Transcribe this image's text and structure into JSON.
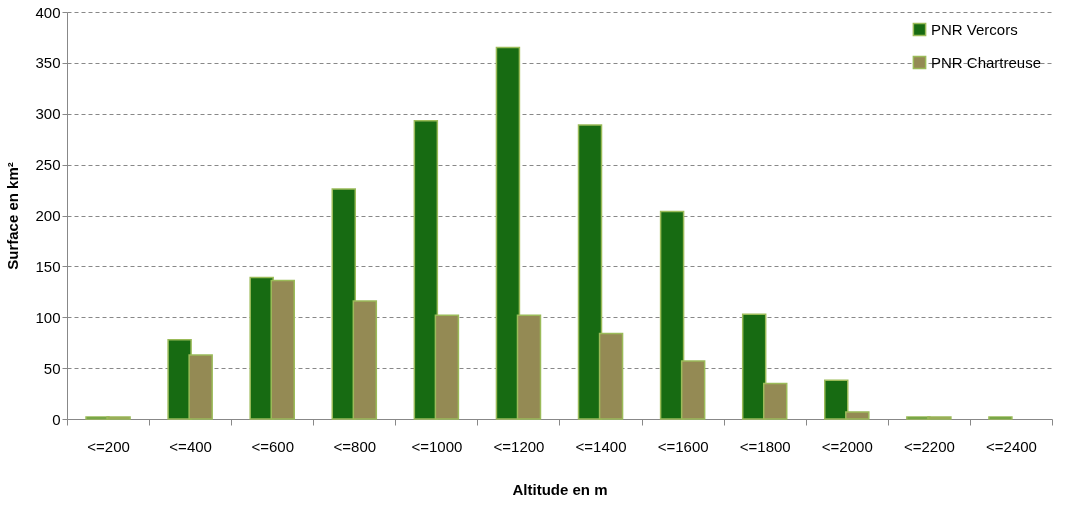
{
  "chart_data": {
    "type": "bar",
    "xlabel": "Altitude en m",
    "ylabel": "Surface en km²",
    "categories": [
      "<=200",
      "<=400",
      "<=600",
      "<=800",
      "<=1000",
      "<=1200",
      "<=1400",
      "<=1600",
      "<=1800",
      "<=2000",
      "<=2200",
      "<=2400"
    ],
    "series": [
      {
        "name": "PNR Vercors",
        "color": "#176b12",
        "values": [
          2,
          78,
          139,
          226,
          293,
          365,
          289,
          204,
          103,
          38,
          2,
          2
        ]
      },
      {
        "name": "PNR Chartreuse",
        "color": "#948a54",
        "values": [
          2,
          63,
          136,
          116,
          102,
          102,
          84,
          57,
          35,
          7,
          2,
          null
        ]
      }
    ],
    "ylim": [
      0,
      400
    ],
    "yticks": [
      0,
      50,
      100,
      150,
      200,
      250,
      300,
      350,
      400
    ],
    "grid": "y",
    "legend": "top right"
  }
}
